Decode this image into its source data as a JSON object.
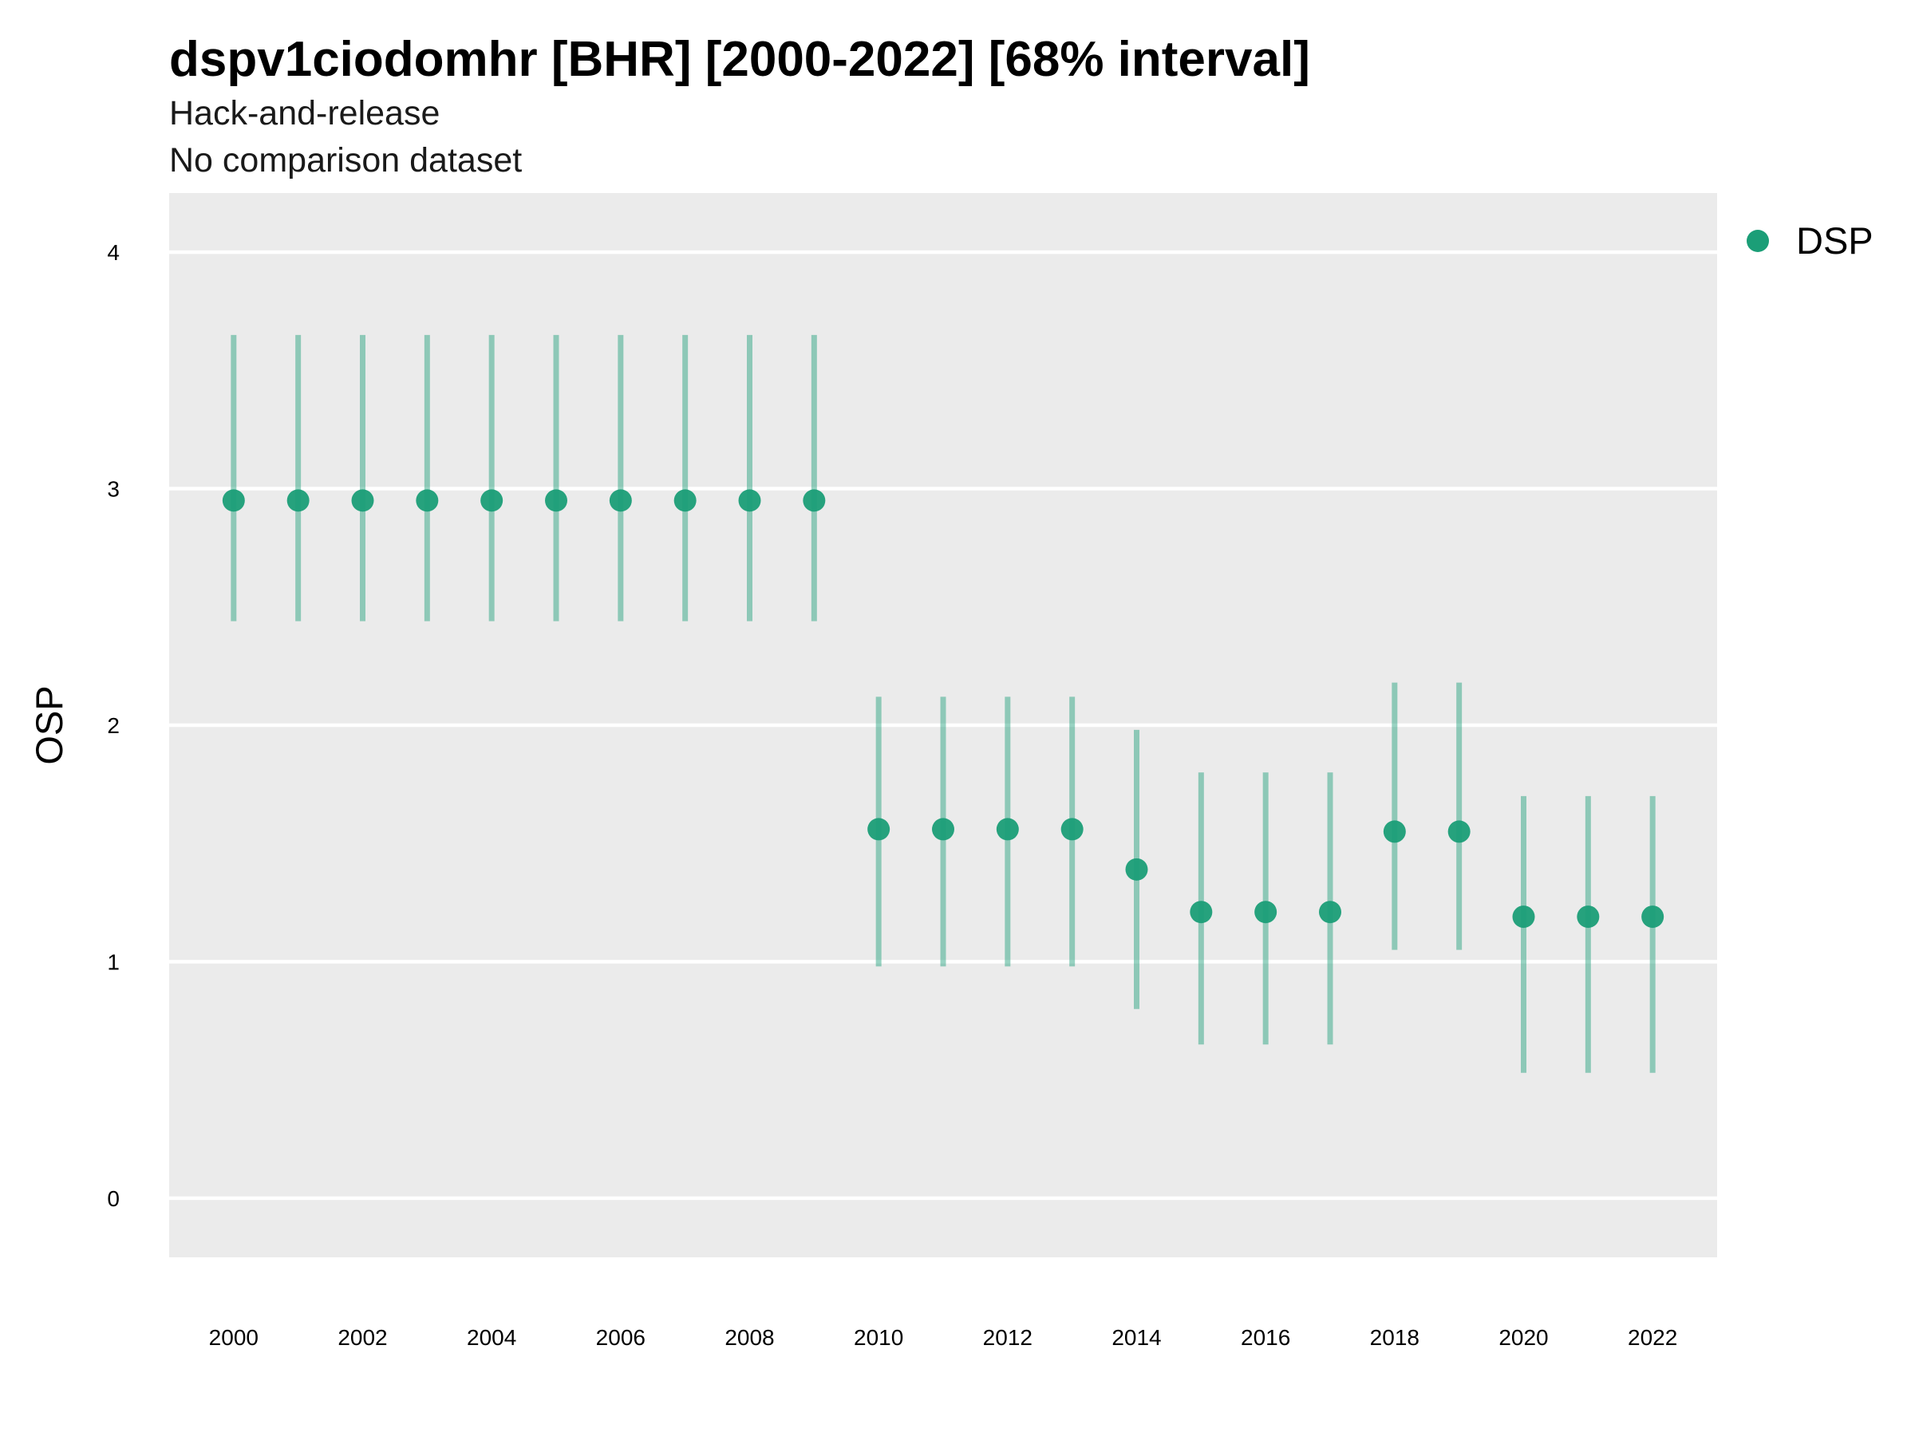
{
  "chart_data": {
    "type": "scatter",
    "title": "dspv1ciodomhr [BHR] [2000-2022] [68% interval]",
    "subtitle": [
      "Hack-and-release",
      "No comparison dataset"
    ],
    "xlabel": "",
    "ylabel": "OSP",
    "xlim": [
      1999.0,
      2023.0
    ],
    "ylim": [
      -0.25,
      4.25
    ],
    "x_ticks": [
      2000,
      2002,
      2004,
      2006,
      2008,
      2010,
      2012,
      2014,
      2016,
      2018,
      2020,
      2022
    ],
    "y_ticks": [
      0,
      1,
      2,
      3,
      4
    ],
    "grid": true,
    "panel_background": "#ebebeb",
    "gridline_color": "#ffffff",
    "legend": {
      "position": "right",
      "entries": [
        "DSP"
      ]
    },
    "series": [
      {
        "name": "DSP",
        "color": "#1b9e77",
        "x": [
          2000,
          2001,
          2002,
          2003,
          2004,
          2005,
          2006,
          2007,
          2008,
          2009,
          2010,
          2011,
          2012,
          2013,
          2014,
          2015,
          2016,
          2017,
          2018,
          2019,
          2020,
          2021,
          2022
        ],
        "y": [
          2.95,
          2.95,
          2.95,
          2.95,
          2.95,
          2.95,
          2.95,
          2.95,
          2.95,
          2.95,
          1.56,
          1.56,
          1.56,
          1.56,
          1.39,
          1.21,
          1.21,
          1.21,
          1.55,
          1.55,
          1.19,
          1.19,
          1.19
        ],
        "lower": [
          2.44,
          2.44,
          2.44,
          2.44,
          2.44,
          2.44,
          2.44,
          2.44,
          2.44,
          2.44,
          0.98,
          0.98,
          0.98,
          0.98,
          0.8,
          0.65,
          0.65,
          0.65,
          1.05,
          1.05,
          0.53,
          0.53,
          0.53
        ],
        "upper": [
          3.65,
          3.65,
          3.65,
          3.65,
          3.65,
          3.65,
          3.65,
          3.65,
          3.65,
          3.65,
          2.12,
          2.12,
          2.12,
          2.12,
          1.98,
          1.8,
          1.8,
          1.8,
          2.18,
          2.18,
          1.7,
          1.7,
          1.7
        ]
      }
    ]
  }
}
